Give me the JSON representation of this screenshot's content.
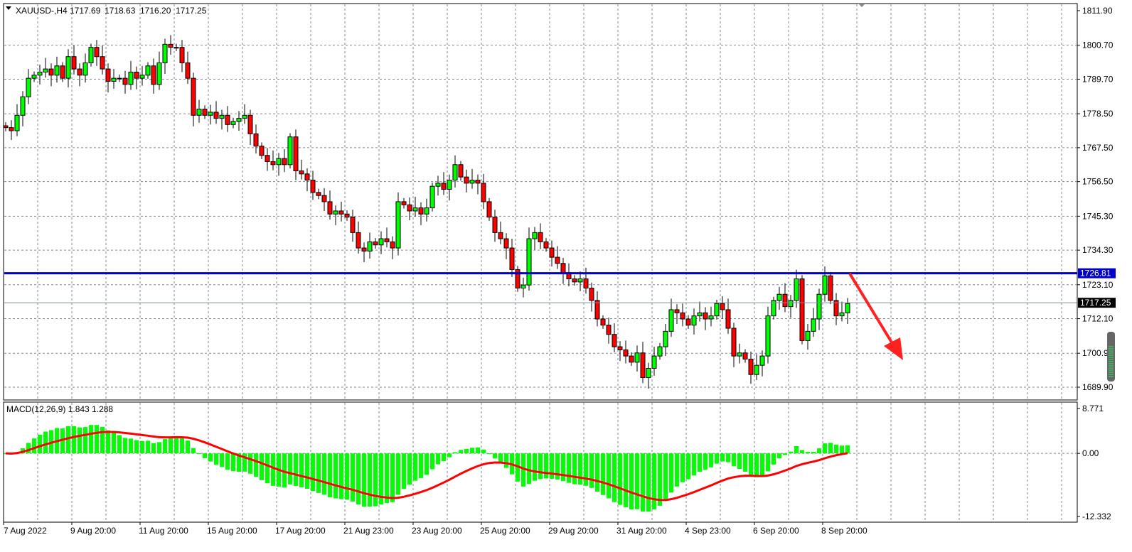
{
  "chart_data": {
    "type": "candlestick",
    "symbol_header": "XAUUSD-,H4",
    "ohlc_header": [
      "1717.69",
      "1718.63",
      "1716.20",
      "1717.25"
    ],
    "price_ticks": [
      "1811.90",
      "1800.70",
      "1789.70",
      "1778.50",
      "1767.50",
      "1756.50",
      "1745.30",
      "1734.30",
      "1723.10",
      "1712.10",
      "1700.90",
      "1689.90"
    ],
    "ylim": [
      1689.9,
      1811.9
    ],
    "time_labels": [
      "7 Aug 2022",
      "9 Aug 20:00",
      "11 Aug 20:00",
      "15 Aug 20:00",
      "17 Aug 20:00",
      "21 Aug 23:00",
      "23 Aug 20:00",
      "25 Aug 20:00",
      "29 Aug 20:00",
      "31 Aug 20:00",
      "4 Sep 23:00",
      "6 Sep 20:00",
      "8 Sep 20:00"
    ],
    "closes": [
      1774,
      1773,
      1778,
      1784,
      1790,
      1791,
      1792,
      1793,
      1791,
      1794,
      1790,
      1797,
      1793,
      1791,
      1795,
      1800,
      1797,
      1793,
      1789,
      1790,
      1790,
      1788,
      1792,
      1790,
      1791,
      1794,
      1788,
      1795,
      1801,
      1800,
      1800,
      1795,
      1790,
      1778,
      1780,
      1778,
      1779,
      1777,
      1778,
      1775,
      1776,
      1777,
      1778,
      1772,
      1768,
      1765,
      1763,
      1762,
      1764,
      1762,
      1771,
      1760,
      1759,
      1757,
      1753,
      1752,
      1750,
      1746,
      1747,
      1746,
      1745,
      1740,
      1735,
      1734,
      1737,
      1736,
      1738,
      1737,
      1735,
      1750,
      1749,
      1747,
      1748,
      1746,
      1748,
      1755,
      1756,
      1754,
      1757,
      1762,
      1758,
      1756,
      1757,
      1756,
      1750,
      1745,
      1740,
      1738,
      1735,
      1728,
      1722,
      1723,
      1738,
      1740,
      1737,
      1735,
      1732,
      1730,
      1727,
      1725,
      1724,
      1725,
      1722,
      1718,
      1712,
      1710,
      1707,
      1703,
      1702,
      1700,
      1698,
      1701,
      1693,
      1696,
      1700,
      1703,
      1708,
      1715,
      1714,
      1712,
      1710,
      1713,
      1714,
      1712,
      1713,
      1717,
      1715,
      1709,
      1700,
      1701,
      1699,
      1694,
      1697,
      1700,
      1713,
      1718,
      1720,
      1716,
      1718,
      1725,
      1705,
      1708,
      1712,
      1720,
      1726,
      1718,
      1713,
      1714,
      1717
    ],
    "horizontal_line": {
      "price": "1726.81",
      "color": "#0000cc"
    },
    "current_price": {
      "price": "1717.25",
      "color": "#000000"
    },
    "bull_color": "#00ff00",
    "bear_color": "#ff0000",
    "arrow": {
      "direction": "down",
      "color": "#ff2020"
    },
    "macd": {
      "label": "MACD(12,26,9) 1.843 1.288",
      "params": [
        12,
        26,
        9
      ],
      "ticks": [
        "8.771",
        "0.00",
        "-12.332"
      ],
      "ylim": [
        -12.332,
        8.771
      ],
      "histogram_color": "#00ff00",
      "signal_color": "#ff0000"
    },
    "grid": true
  }
}
